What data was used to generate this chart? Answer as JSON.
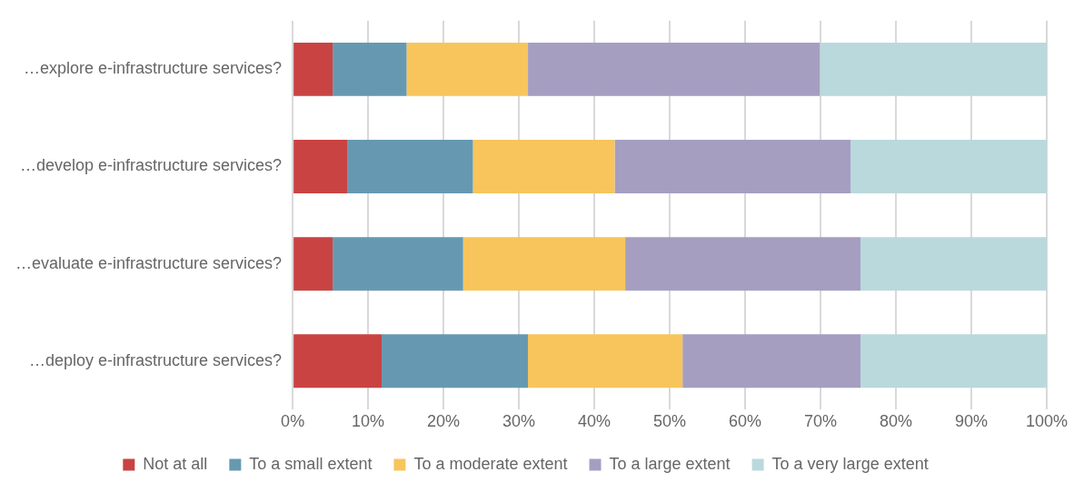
{
  "chart_data": {
    "type": "bar",
    "orientation": "horizontal",
    "stacked": true,
    "categories": [
      "…explore e-infrastructure services?",
      "…develop e-infrastructure services?",
      "…evaluate e-infrastructure services?",
      "…deploy e-infrastructure services?"
    ],
    "series": [
      {
        "name": "Not at all",
        "color": "#c94343",
        "values": [
          5.3,
          7.3,
          5.3,
          11.8
        ]
      },
      {
        "name": "To a small extent",
        "color": "#6699b1",
        "values": [
          9.8,
          16.6,
          17.3,
          19.4
        ]
      },
      {
        "name": "To a moderate extent",
        "color": "#f7c55b",
        "values": [
          16.1,
          18.8,
          21.5,
          20.5
        ]
      },
      {
        "name": "To a large extent",
        "color": "#a59ec1",
        "values": [
          38.7,
          31.3,
          31.2,
          23.6
        ]
      },
      {
        "name": "To a very large extent",
        "color": "#bad9dc",
        "values": [
          30.1,
          26.0,
          24.7,
          24.7
        ]
      }
    ],
    "xlim": [
      0,
      100
    ],
    "xticks": [
      {
        "value": 0,
        "label": "0%"
      },
      {
        "value": 10,
        "label": "10%"
      },
      {
        "value": 20,
        "label": "20%"
      },
      {
        "value": 30,
        "label": "30%"
      },
      {
        "value": 40,
        "label": "40%"
      },
      {
        "value": 50,
        "label": "50%"
      },
      {
        "value": 60,
        "label": "60%"
      },
      {
        "value": 70,
        "label": "70%"
      },
      {
        "value": 80,
        "label": "80%"
      },
      {
        "value": 90,
        "label": "90%"
      },
      {
        "value": 100,
        "label": "100%"
      }
    ],
    "grid": "x",
    "legend": "bottom"
  }
}
